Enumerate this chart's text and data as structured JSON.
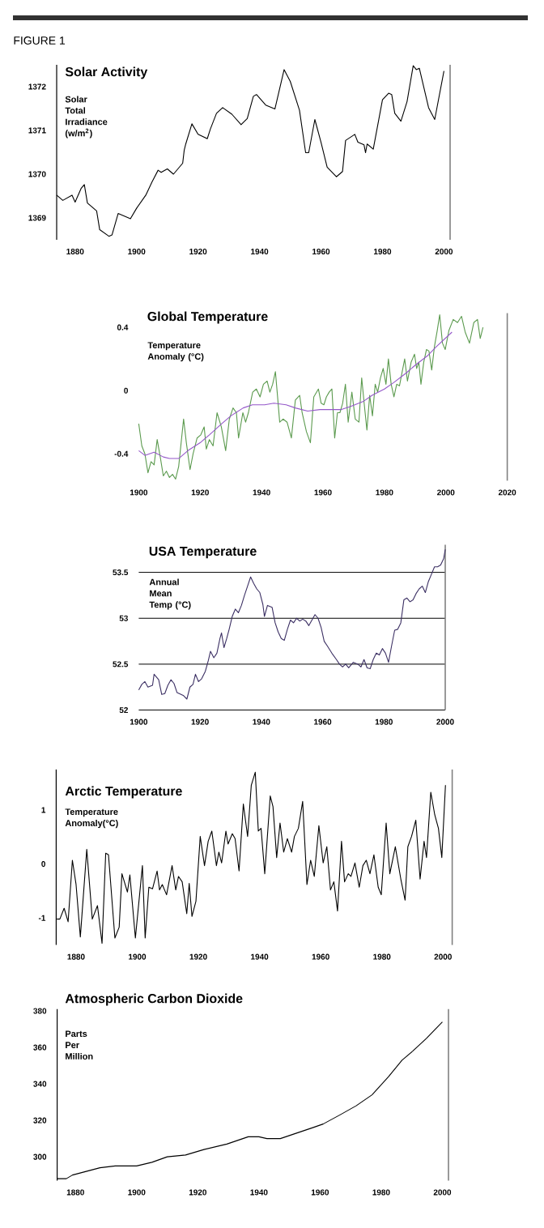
{
  "chart_data": [
    {
      "type": "line",
      "title": "Solar Activity",
      "ylabel": "Solar Total Irradiance (w/m$^{2}$)",
      "annotations": [
        "FIGURE 1"
      ],
      "xlim": [
        1874,
        2002
      ],
      "ylim": [
        1368.5,
        1372.5
      ],
      "xticks": [
        1880,
        1900,
        1920,
        1940,
        1960,
        1980,
        2000
      ],
      "yticks": [
        1369,
        1370,
        1371,
        1372
      ],
      "series": [
        {
          "color": "#000000",
          "x": [
            1874,
            1876,
            1879,
            1880,
            1882,
            1883,
            1884,
            1887,
            1888,
            1891,
            1892,
            1894,
            1898,
            1900,
            1903,
            1905,
            1907,
            1908,
            1910,
            1912,
            1915,
            1915.5,
            1916,
            1918,
            1920,
            1923,
            1924,
            1926,
            1928,
            1931,
            1934,
            1936,
            1938,
            1939,
            1942,
            1945,
            1948,
            1950,
            1953,
            1955,
            1956,
            1958,
            1960,
            1962,
            1965,
            1967,
            1968,
            1971,
            1972,
            1974,
            1974.5,
            1975,
            1977,
            1980,
            1982,
            1983,
            1984,
            1986,
            1988,
            1990,
            1991,
            1992,
            1995,
            1997,
            2000
          ],
          "values": [
            1369.52,
            1369.4,
            1369.52,
            1369.36,
            1369.68,
            1369.76,
            1369.34,
            1369.16,
            1368.73,
            1368.58,
            1368.61,
            1369.1,
            1368.98,
            1369.22,
            1369.52,
            1369.82,
            1370.09,
            1370.04,
            1370.12,
            1370.0,
            1370.25,
            1370.55,
            1370.69,
            1371.15,
            1370.91,
            1370.81,
            1371.03,
            1371.39,
            1371.52,
            1371.37,
            1371.13,
            1371.27,
            1371.78,
            1371.82,
            1371.58,
            1371.49,
            1372.39,
            1372.12,
            1371.46,
            1370.49,
            1370.49,
            1371.25,
            1370.73,
            1370.16,
            1369.94,
            1370.06,
            1370.77,
            1370.91,
            1370.73,
            1370.67,
            1370.49,
            1370.69,
            1370.57,
            1371.7,
            1371.85,
            1371.82,
            1371.39,
            1371.21,
            1371.66,
            1372.48,
            1372.39,
            1372.42,
            1371.52,
            1371.25,
            1372.36
          ]
        }
      ]
    },
    {
      "type": "line",
      "title": "Global Temperature",
      "ylabel": "Temperature Anomaly (°C)",
      "xlim": [
        1900,
        2020
      ],
      "ylim": [
        -0.57,
        0.49
      ],
      "xticks": [
        1900,
        1920,
        1940,
        1960,
        1980,
        2000,
        2020
      ],
      "yticks": [
        -0.4,
        0,
        0.4
      ],
      "series": [
        {
          "color": "#5b9a4e",
          "x": [
            1900,
            1901,
            1902,
            1903,
            1904,
            1905,
            1906,
            1907,
            1908,
            1909,
            1910,
            1911,
            1912,
            1913,
            1914.6,
            1915.5,
            1916.7,
            1917.7,
            1919,
            1920.2,
            1921.3,
            1922,
            1923,
            1924.2,
            1925.5,
            1926.9,
            1928.3,
            1929.5,
            1930.7,
            1931.8,
            1932.5,
            1933.9,
            1934.8,
            1935.7,
            1937.1,
            1938.3,
            1939.5,
            1940.6,
            1941.8,
            1942.7,
            1943.6,
            1944.5,
            1945.3,
            1945.9,
            1947,
            1948.3,
            1949.7,
            1951,
            1952.4,
            1953.2,
            1954.6,
            1955.9,
            1957,
            1958.5,
            1959.4,
            1960.3,
            1961.1,
            1962,
            1962.9,
            1963.8,
            1964.7,
            1965.5,
            1966.4,
            1967.3,
            1968.2,
            1969.4,
            1970.5,
            1971.7,
            1972.6,
            1973.4,
            1974.3,
            1975.2,
            1976.1,
            1977,
            1977.8,
            1978.7,
            1979.6,
            1980.5,
            1981.3,
            1982.2,
            1983.1,
            1984,
            1984.9,
            1985.7,
            1986.6,
            1987.5,
            1988.7,
            1989.8,
            1990.5,
            1991.2,
            1991.9,
            1992.8,
            1993.7,
            1994.5,
            1995.4,
            1996.3,
            1997.2,
            1998,
            1998.9,
            1999.8,
            2001,
            2002.4,
            2003.8,
            2005.1,
            2006.3,
            2007.7,
            2009.1,
            2010.3,
            2011.2,
            2012.1
          ],
          "values": [
            -0.21,
            -0.35,
            -0.4,
            -0.52,
            -0.45,
            -0.47,
            -0.31,
            -0.42,
            -0.54,
            -0.51,
            -0.55,
            -0.53,
            -0.56,
            -0.48,
            -0.18,
            -0.33,
            -0.5,
            -0.4,
            -0.3,
            -0.28,
            -0.23,
            -0.37,
            -0.31,
            -0.35,
            -0.14,
            -0.23,
            -0.38,
            -0.18,
            -0.11,
            -0.14,
            -0.3,
            -0.14,
            -0.2,
            -0.14,
            -0.01,
            0.01,
            -0.04,
            0.04,
            0.06,
            -0.01,
            0.04,
            0.12,
            -0.06,
            -0.2,
            -0.18,
            -0.2,
            -0.3,
            -0.06,
            -0.03,
            -0.14,
            -0.26,
            -0.33,
            -0.04,
            0.01,
            -0.08,
            -0.09,
            -0.04,
            -0.01,
            0.01,
            -0.3,
            -0.14,
            -0.14,
            -0.08,
            0.04,
            -0.2,
            -0.01,
            -0.18,
            -0.2,
            0.08,
            -0.08,
            -0.25,
            -0.03,
            -0.16,
            0.04,
            -0.01,
            0.08,
            0.14,
            0.04,
            0.2,
            0.04,
            -0.04,
            0.04,
            0.03,
            0.11,
            0.2,
            0.06,
            0.18,
            0.23,
            0.14,
            0.18,
            0.04,
            0.18,
            0.26,
            0.25,
            0.13,
            0.28,
            0.38,
            0.48,
            0.3,
            0.26,
            0.38,
            0.45,
            0.43,
            0.47,
            0.37,
            0.3,
            0.43,
            0.45,
            0.33,
            0.4
          ]
        },
        {
          "color": "#9457c9",
          "x": [
            1900,
            1902,
            1905,
            1908,
            1910,
            1913,
            1916,
            1920,
            1923,
            1927,
            1930,
            1934,
            1937,
            1941,
            1944,
            1948,
            1951,
            1955,
            1959,
            1962,
            1966,
            1969,
            1973,
            1976,
            1980,
            1983,
            1987,
            1990,
            1994,
            1997,
            2002
          ],
          "values": [
            -0.38,
            -0.41,
            -0.39,
            -0.42,
            -0.43,
            -0.43,
            -0.38,
            -0.33,
            -0.28,
            -0.21,
            -0.16,
            -0.11,
            -0.09,
            -0.09,
            -0.08,
            -0.09,
            -0.11,
            -0.13,
            -0.12,
            -0.12,
            -0.12,
            -0.1,
            -0.07,
            -0.03,
            0.01,
            0.05,
            0.11,
            0.16,
            0.22,
            0.28,
            0.37
          ]
        }
      ]
    },
    {
      "type": "line",
      "title": "USA Temperature",
      "ylabel": "Annual Mean Temp (°C)",
      "grid": "y",
      "xlim": [
        1900,
        2000
      ],
      "ylim": [
        52,
        53.8
      ],
      "xticks": [
        1900,
        1920,
        1940,
        1960,
        1980,
        2000
      ],
      "yticks": [
        52,
        52.5,
        53,
        53.5
      ],
      "series": [
        {
          "color": "#3b2f63",
          "x": [
            1900,
            1901,
            1902,
            1903,
            1904.5,
            1905,
            1906.5,
            1907.5,
            1908.5,
            1909.5,
            1910.5,
            1911.5,
            1912.5,
            1914.5,
            1915.7,
            1916.7,
            1917.7,
            1918.5,
            1919.5,
            1920.5,
            1921.7,
            1922.7,
            1923.4,
            1924.5,
            1925.5,
            1926.5,
            1927,
            1927.8,
            1928.7,
            1929.5,
            1930.5,
            1931.5,
            1932.5,
            1933.5,
            1934.5,
            1935.5,
            1936.5,
            1937.5,
            1938.5,
            1939.5,
            1940.5,
            1941,
            1942,
            1943.5,
            1944.5,
            1945.5,
            1946.5,
            1947.5,
            1948.5,
            1949.5,
            1950.5,
            1951.5,
            1952.5,
            1953.5,
            1954.5,
            1955.5,
            1956.5,
            1957.5,
            1958.5,
            1959.5,
            1960.5,
            1961.5,
            1963,
            1964.5,
            1965.5,
            1966.5,
            1967.5,
            1968.5,
            1970,
            1971.5,
            1972.5,
            1973.5,
            1974.5,
            1975.5,
            1976.5,
            1977.5,
            1978.5,
            1979.5,
            1980.5,
            1981.5,
            1982.5,
            1983.5,
            1984.5,
            1985.5,
            1986.5,
            1987.5,
            1988.5,
            1989.5,
            1990.5,
            1991.5,
            1992.5,
            1993.5,
            1994.5,
            1995.5,
            1996.5,
            1997.5,
            1998.5,
            1999.5,
            2000
          ],
          "values": [
            52.22,
            52.28,
            52.31,
            52.25,
            52.27,
            52.39,
            52.33,
            52.17,
            52.18,
            52.27,
            52.33,
            52.29,
            52.19,
            52.16,
            52.12,
            52.25,
            52.28,
            52.39,
            52.31,
            52.34,
            52.42,
            52.54,
            52.64,
            52.57,
            52.62,
            52.78,
            52.84,
            52.68,
            52.78,
            52.88,
            53.02,
            53.1,
            53.06,
            53.14,
            53.25,
            53.35,
            53.45,
            53.38,
            53.32,
            53.28,
            53.15,
            53.02,
            53.14,
            53.12,
            52.95,
            52.85,
            52.78,
            52.76,
            52.88,
            52.98,
            52.95,
            53.0,
            52.97,
            52.99,
            52.97,
            52.92,
            52.98,
            53.04,
            53.0,
            52.9,
            52.75,
            52.7,
            52.62,
            52.55,
            52.5,
            52.47,
            52.5,
            52.46,
            52.52,
            52.5,
            52.47,
            52.55,
            52.46,
            52.45,
            52.55,
            52.62,
            52.6,
            52.67,
            52.62,
            52.52,
            52.7,
            52.87,
            52.88,
            52.95,
            53.2,
            53.22,
            53.18,
            53.2,
            53.27,
            53.32,
            53.35,
            53.28,
            53.4,
            53.48,
            53.56,
            53.56,
            53.58,
            53.65,
            53.75
          ]
        }
      ]
    },
    {
      "type": "line",
      "title": "Arctic Temperature",
      "ylabel": "Temperature Anomaly(°C)",
      "xlim": [
        1873.5,
        2003
      ],
      "ylim": [
        -1.5,
        1.75
      ],
      "xticks": [
        1880,
        1900,
        1920,
        1940,
        1960,
        1980,
        2000
      ],
      "yticks": [
        -1,
        0,
        1
      ],
      "series": [
        {
          "color": "#000000",
          "x": [
            1873.7,
            1874.7,
            1876.1,
            1877.4,
            1878.8,
            1880,
            1881.4,
            1883.5,
            1885.3,
            1887,
            1888.5,
            1889.7,
            1890.6,
            1892.7,
            1894.1,
            1895,
            1896.8,
            1897.6,
            1899.4,
            1901.7,
            1902.6,
            1903.8,
            1905,
            1906.5,
            1907.3,
            1908.2,
            1909.6,
            1911.4,
            1912.6,
            1913.5,
            1914.7,
            1916.2,
            1917,
            1917.9,
            1919.2,
            1920.6,
            1922,
            1923.2,
            1924.4,
            1925.9,
            1926.7,
            1927.6,
            1929,
            1929.7,
            1931.1,
            1932,
            1933.3,
            1934.7,
            1936.1,
            1937.3,
            1938.6,
            1939.6,
            1940.5,
            1941.7,
            1943.5,
            1944.4,
            1945.6,
            1946.7,
            1947.9,
            1949.1,
            1950.5,
            1951.4,
            1952.7,
            1954.1,
            1955.5,
            1956.7,
            1957.9,
            1959.4,
            1960.8,
            1962,
            1963.2,
            1964.3,
            1965.5,
            1966.8,
            1967.8,
            1969,
            1969.9,
            1971.2,
            1972.6,
            1973.8,
            1974.9,
            1976.1,
            1977.4,
            1978.8,
            1979.8,
            1981.4,
            1982.6,
            1984.4,
            1986.2,
            1987.6,
            1988.5,
            1989.7,
            1991.1,
            1992.5,
            1993.8,
            1994.6,
            1996,
            1997.3,
            1998.5,
            1999.6,
            2000.8
          ],
          "values": [
            -1.02,
            -1.02,
            -0.82,
            -1.07,
            0.07,
            -0.38,
            -1.35,
            0.27,
            -1.02,
            -0.77,
            -1.47,
            0.2,
            0.17,
            -1.37,
            -1.17,
            -0.18,
            -0.52,
            -0.2,
            -1.37,
            -0.03,
            -1.37,
            -0.43,
            -0.46,
            -0.13,
            -0.48,
            -0.38,
            -0.57,
            -0.03,
            -0.48,
            -0.23,
            -0.33,
            -0.92,
            -0.36,
            -0.97,
            -0.69,
            0.51,
            -0.03,
            0.42,
            0.61,
            -0.03,
            0.22,
            0.02,
            0.61,
            0.37,
            0.56,
            0.47,
            -0.13,
            1.11,
            0.51,
            1.46,
            1.7,
            0.61,
            0.66,
            -0.18,
            1.26,
            1.06,
            0.12,
            0.76,
            0.22,
            0.47,
            0.22,
            0.51,
            0.66,
            1.16,
            -0.38,
            0.07,
            -0.23,
            0.71,
            0.02,
            0.32,
            -0.48,
            -0.33,
            -0.87,
            0.42,
            -0.33,
            -0.18,
            -0.23,
            0.02,
            -0.43,
            -0.03,
            0.07,
            -0.18,
            0.17,
            -0.43,
            -0.57,
            0.76,
            -0.18,
            0.32,
            -0.28,
            -0.67,
            0.32,
            0.51,
            0.81,
            -0.28,
            0.42,
            0.12,
            1.33,
            0.91,
            0.66,
            0.12,
            1.46
          ]
        }
      ]
    },
    {
      "type": "line",
      "title": "Atmospheric Carbon Dioxide",
      "ylabel": "Parts Per Million",
      "xlim": [
        1874,
        2002
      ],
      "ylim": [
        287,
        381
      ],
      "xticks": [
        1880,
        1900,
        1920,
        1940,
        1960,
        1980,
        2000
      ],
      "yticks": [
        300,
        320,
        340,
        360,
        380
      ],
      "series": [
        {
          "color": "#000000",
          "x": [
            1874,
            1877,
            1879,
            1883.5,
            1888,
            1893,
            1900,
            1905,
            1910,
            1916,
            1922,
            1929.5,
            1936.5,
            1940,
            1942.6,
            1947,
            1952.3,
            1957.6,
            1961,
            1966.5,
            1971.8,
            1977,
            1982.4,
            1986.8,
            1990.3,
            1994.8,
            2000
          ],
          "values": [
            288,
            288,
            290,
            292,
            294,
            295,
            295,
            297,
            300,
            301,
            304,
            307,
            311,
            311,
            310,
            310,
            313,
            316,
            318,
            323,
            328,
            334,
            344,
            353,
            358,
            365,
            374
          ]
        }
      ]
    }
  ]
}
